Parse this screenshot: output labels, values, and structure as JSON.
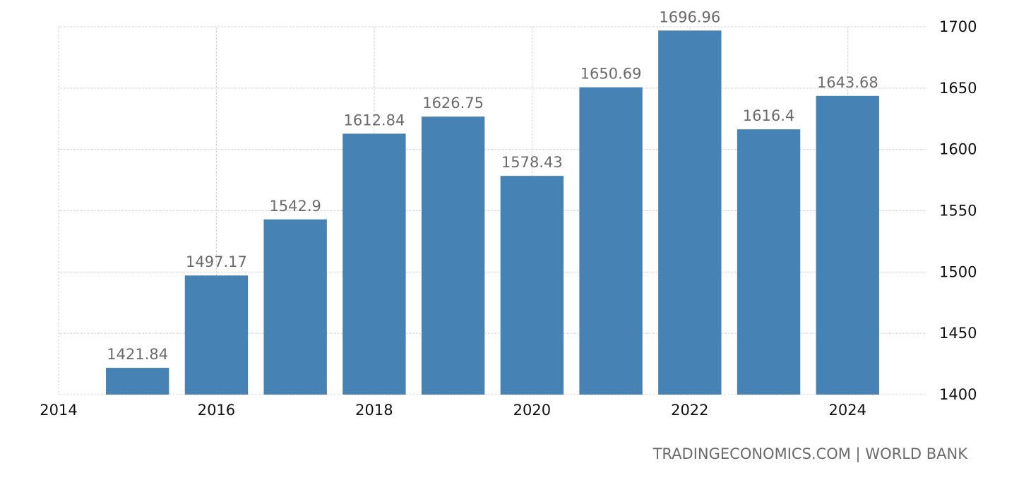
{
  "chart_data": {
    "type": "bar",
    "title": "",
    "xlabel": "",
    "ylabel": "",
    "categories": [
      "2015",
      "2016",
      "2017",
      "2018",
      "2019",
      "2020",
      "2021",
      "2022",
      "2023",
      "2024"
    ],
    "values": [
      1421.84,
      1497.17,
      1542.9,
      1612.84,
      1626.75,
      1578.43,
      1650.69,
      1696.96,
      1616.4,
      1643.68
    ],
    "data_labels": [
      "1421.84",
      "1497.17",
      "1542.9",
      "1612.84",
      "1626.75",
      "1578.43",
      "1650.69",
      "1696.96",
      "1616.4",
      "1643.68"
    ],
    "x_range": [
      2014,
      2025
    ],
    "x_ticks": [
      "2014",
      "2016",
      "2018",
      "2020",
      "2022",
      "2024"
    ],
    "ylim": [
      1400,
      1700
    ],
    "y_ticks": [
      "1400",
      "1450",
      "1500",
      "1550",
      "1600",
      "1650",
      "1700"
    ],
    "y_axis_position": "right",
    "grid": true,
    "legend": "none",
    "bar_color": "#4682b4",
    "data_label_color": "#6b6b6b"
  },
  "source": "TRADINGECONOMICS.COM | WORLD BANK"
}
